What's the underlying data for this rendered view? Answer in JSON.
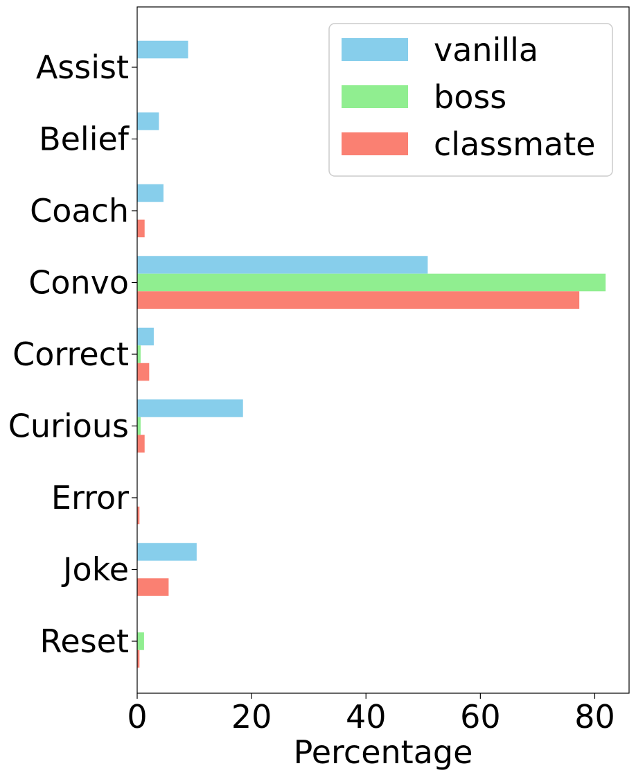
{
  "chart_data": {
    "type": "bar",
    "orientation": "horizontal",
    "categories": [
      "Assist",
      "Belief",
      "Coach",
      "Convo",
      "Correct",
      "Curious",
      "Error",
      "Joke",
      "Reset"
    ],
    "series": [
      {
        "name": "vanilla",
        "color": "#87CEEB",
        "values": [
          8.9,
          3.8,
          4.6,
          50.8,
          2.9,
          18.5,
          0.0,
          10.4,
          0.0
        ]
      },
      {
        "name": "boss",
        "color": "#90EE90",
        "values": [
          0.0,
          0.0,
          0.0,
          81.9,
          0.6,
          0.6,
          0.0,
          0.0,
          1.2
        ]
      },
      {
        "name": "classmate",
        "color": "#FA8072",
        "values": [
          0.0,
          0.0,
          1.3,
          77.3,
          2.1,
          1.3,
          0.4,
          5.5,
          0.4
        ]
      }
    ],
    "xlabel": "Percentage",
    "ylabel": "",
    "xlim": [
      0,
      86
    ],
    "xticks": [
      "0",
      "20",
      "40",
      "60",
      "80"
    ],
    "xtick_values": [
      0,
      20,
      40,
      60,
      80
    ],
    "grid": false,
    "legend": "top-right"
  }
}
